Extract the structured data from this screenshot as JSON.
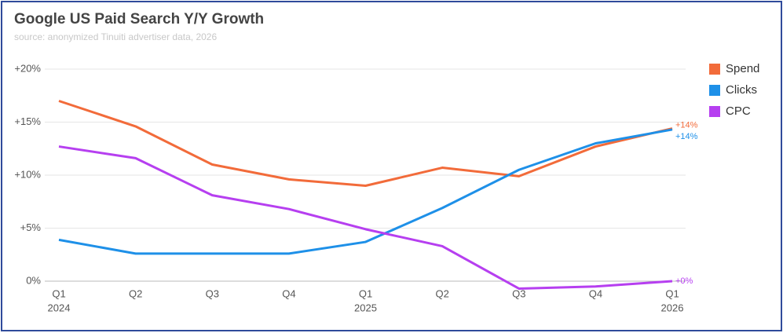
{
  "chart_data": {
    "type": "line",
    "title": "Google US Paid Search Y/Y Growth",
    "subtitle": "source: anonymized Tinuiti advertiser data, 2026",
    "categories": [
      "Q1",
      "Q2",
      "Q3",
      "Q4",
      "Q1",
      "Q2",
      "Q3",
      "Q4",
      "Q1"
    ],
    "category_years": [
      "2024",
      null,
      null,
      null,
      "2025",
      null,
      null,
      null,
      "2026"
    ],
    "series": [
      {
        "name": "Spend",
        "color": "#f26b3a",
        "values": [
          17.0,
          14.6,
          11.0,
          9.6,
          9.0,
          10.7,
          9.9,
          12.7,
          14.4
        ],
        "value_labels": [
          null,
          null,
          null,
          null,
          null,
          null,
          null,
          null,
          "+14%"
        ]
      },
      {
        "name": "Clicks",
        "color": "#1e90e8",
        "values": [
          3.9,
          2.6,
          2.6,
          2.6,
          3.7,
          6.9,
          10.5,
          13.0,
          14.3
        ],
        "value_labels": [
          null,
          null,
          null,
          null,
          null,
          null,
          null,
          null,
          "+14%"
        ]
      },
      {
        "name": "CPC",
        "color": "#b63ff0",
        "values": [
          12.7,
          11.6,
          8.1,
          6.8,
          4.9,
          3.3,
          -0.7,
          -0.5,
          0
        ],
        "value_labels": [
          null,
          null,
          null,
          null,
          null,
          null,
          null,
          null,
          "+0%"
        ]
      }
    ],
    "ylim": [
      0,
      20
    ],
    "yticks": [
      {
        "value": 0,
        "label": "0%"
      },
      {
        "value": 5,
        "label": "+5%"
      },
      {
        "value": 10,
        "label": "+10%"
      },
      {
        "value": 15,
        "label": "+15%"
      },
      {
        "value": 20,
        "label": "+20%"
      }
    ],
    "grid": true,
    "legend": "right"
  }
}
